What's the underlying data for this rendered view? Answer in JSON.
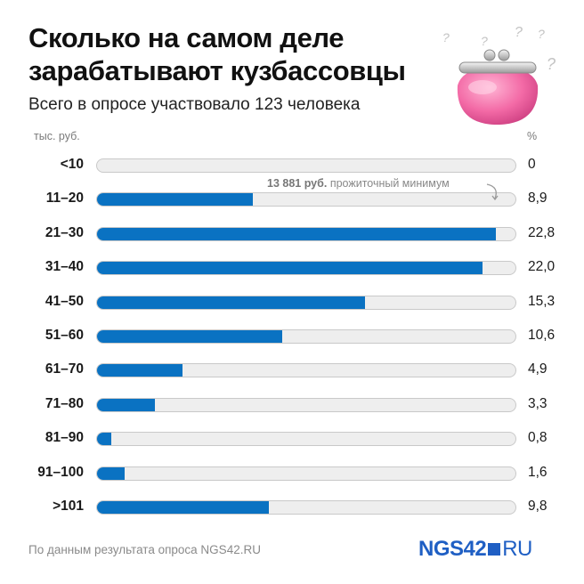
{
  "title": "Сколько на самом деле зарабатывают кузбассовцы",
  "subtitle": "Всего в опросе участвовало 123 человека",
  "chart_data": {
    "type": "bar",
    "orientation": "horizontal",
    "ylabel_left": "тыс. руб.",
    "ylabel_right": "%",
    "xlim": [
      0,
      24
    ],
    "categories": [
      "<10",
      "11–20",
      "21–30",
      "31–40",
      "41–50",
      "51–60",
      "61–70",
      "71–80",
      "81–90",
      "91–100",
      ">101"
    ],
    "values": [
      0,
      8.9,
      22.8,
      22.0,
      15.3,
      10.6,
      4.9,
      3.3,
      0.8,
      1.6,
      9.8
    ],
    "value_labels": [
      "0",
      "8,9",
      "22,8",
      "22,0",
      "15,3",
      "10,6",
      "4,9",
      "3,3",
      "0,8",
      "1,6",
      "9,8"
    ],
    "annotation": {
      "bold": "13 881 руб.",
      "text": "прожиточный минимум",
      "category": "11–20"
    },
    "colors": {
      "bar": "#0a72c2",
      "track": "#eeeeee",
      "track_border": "#c9c9c9"
    },
    "grid": false,
    "legend": "none"
  },
  "footer": {
    "source": "По данным результата опроса NGS42.RU",
    "logo_left": "NGS42",
    "logo_right": "RU"
  },
  "icons": {
    "illustration": "pink-purse-icon",
    "decor": "question-marks"
  }
}
